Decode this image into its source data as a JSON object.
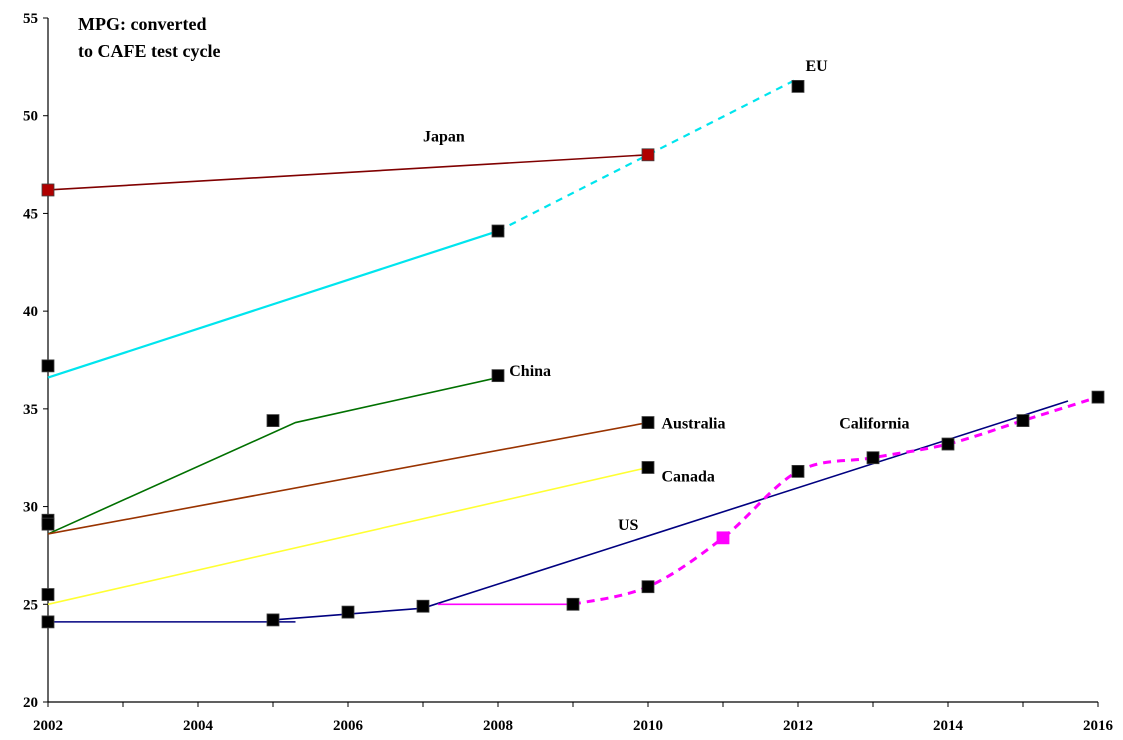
{
  "chart_data": {
    "type": "line",
    "title_lines": [
      "MPG: converted",
      "to CAFE test cycle"
    ],
    "xlabel": "",
    "ylabel": "",
    "xlim": [
      2002,
      2016
    ],
    "ylim": [
      20,
      55
    ],
    "x_ticks": [
      2002,
      2004,
      2006,
      2008,
      2010,
      2012,
      2014,
      2016
    ],
    "y_ticks": [
      20,
      25,
      30,
      35,
      40,
      45,
      50,
      55
    ],
    "grid": false,
    "series": [
      {
        "name": "Japan",
        "color": "#800000",
        "marker_fill": "#b00000",
        "segments": [
          {
            "style": "solid",
            "points": [
              [
                2002,
                46.2
              ],
              [
                2010,
                48.0
              ]
            ]
          }
        ],
        "markers": [
          [
            2002,
            46.2
          ],
          [
            2010,
            48.0
          ]
        ],
        "label_at": [
          2007.0,
          49.0
        ]
      },
      {
        "name": "EU",
        "color": "#00e5ee",
        "marker_fill": "#000000",
        "segments": [
          {
            "style": "solid",
            "points": [
              [
                2002,
                36.6
              ],
              [
                2008,
                44.1
              ]
            ]
          },
          {
            "style": "dashed",
            "points": [
              [
                2008,
                44.1
              ],
              [
                2012,
                51.9
              ]
            ]
          }
        ],
        "markers": [
          [
            2002,
            37.2
          ],
          [
            2008,
            44.1
          ],
          [
            2012,
            51.5
          ]
        ],
        "label_at": [
          2012.1,
          52.6
        ]
      },
      {
        "name": "China",
        "color": "#007000",
        "marker_fill": "#000000",
        "segments": [
          {
            "style": "solid",
            "points": [
              [
                2002,
                28.6
              ],
              [
                2005.3,
                34.3
              ],
              [
                2008,
                36.6
              ]
            ]
          }
        ],
        "markers": [
          [
            2002,
            29.3
          ],
          [
            2005,
            34.4
          ],
          [
            2008,
            36.7
          ]
        ],
        "label_at": [
          2008.15,
          37.0
        ]
      },
      {
        "name": "Australia",
        "color": "#993300",
        "marker_fill": "#000000",
        "segments": [
          {
            "style": "solid",
            "points": [
              [
                2002,
                28.6
              ],
              [
                2010,
                34.3
              ]
            ]
          }
        ],
        "markers": [
          [
            2002,
            29.1
          ],
          [
            2010,
            34.3
          ]
        ],
        "label_at": [
          2010.18,
          34.3
        ]
      },
      {
        "name": "Canada",
        "color": "#ffff33",
        "marker_fill": "#000000",
        "segments": [
          {
            "style": "solid",
            "points": [
              [
                2002,
                25.0
              ],
              [
                2010,
                32.0
              ]
            ]
          }
        ],
        "markers": [
          [
            2002,
            25.5
          ],
          [
            2010,
            32.0
          ]
        ],
        "label_at": [
          2010.18,
          31.6
        ]
      },
      {
        "name": "US",
        "color": "#000080",
        "marker_fill": "#000000",
        "segments": [
          {
            "style": "solid",
            "points": [
              [
                2002,
                24.1
              ],
              [
                2005.3,
                24.1
              ]
            ]
          },
          {
            "style": "solid",
            "points": [
              [
                2005,
                24.2
              ],
              [
                2006,
                24.5
              ],
              [
                2007,
                24.8
              ],
              [
                2015.6,
                35.4
              ]
            ]
          }
        ],
        "markers": [
          [
            2002,
            24.1
          ],
          [
            2005,
            24.2
          ],
          [
            2006,
            24.6
          ],
          [
            2007,
            24.9
          ]
        ],
        "label_at": [
          2009.6,
          29.1
        ]
      },
      {
        "name": "California",
        "color": "#ff00ff",
        "marker_fill": "#000000",
        "special_marker": {
          "x": 2011,
          "y": 28.4,
          "fill": "#ff00ff"
        },
        "segments": [
          {
            "style": "solid",
            "points": [
              [
                2007.2,
                25.0
              ],
              [
                2009,
                25.0
              ]
            ]
          },
          {
            "style": "dashed-curve",
            "points": [
              [
                2009,
                25.0
              ],
              [
                2010,
                25.9
              ],
              [
                2011,
                28.4
              ],
              [
                2012,
                31.8
              ],
              [
                2013,
                32.5
              ],
              [
                2014,
                33.2
              ],
              [
                2015,
                34.4
              ],
              [
                2016,
                35.6
              ]
            ]
          }
        ],
        "markers": [
          [
            2009,
            25.0
          ],
          [
            2010,
            25.9
          ],
          [
            2012,
            31.8
          ],
          [
            2013,
            32.5
          ],
          [
            2014,
            33.2
          ],
          [
            2015,
            34.4
          ],
          [
            2016,
            35.6
          ]
        ],
        "label_at": [
          2012.55,
          34.3
        ]
      }
    ]
  }
}
